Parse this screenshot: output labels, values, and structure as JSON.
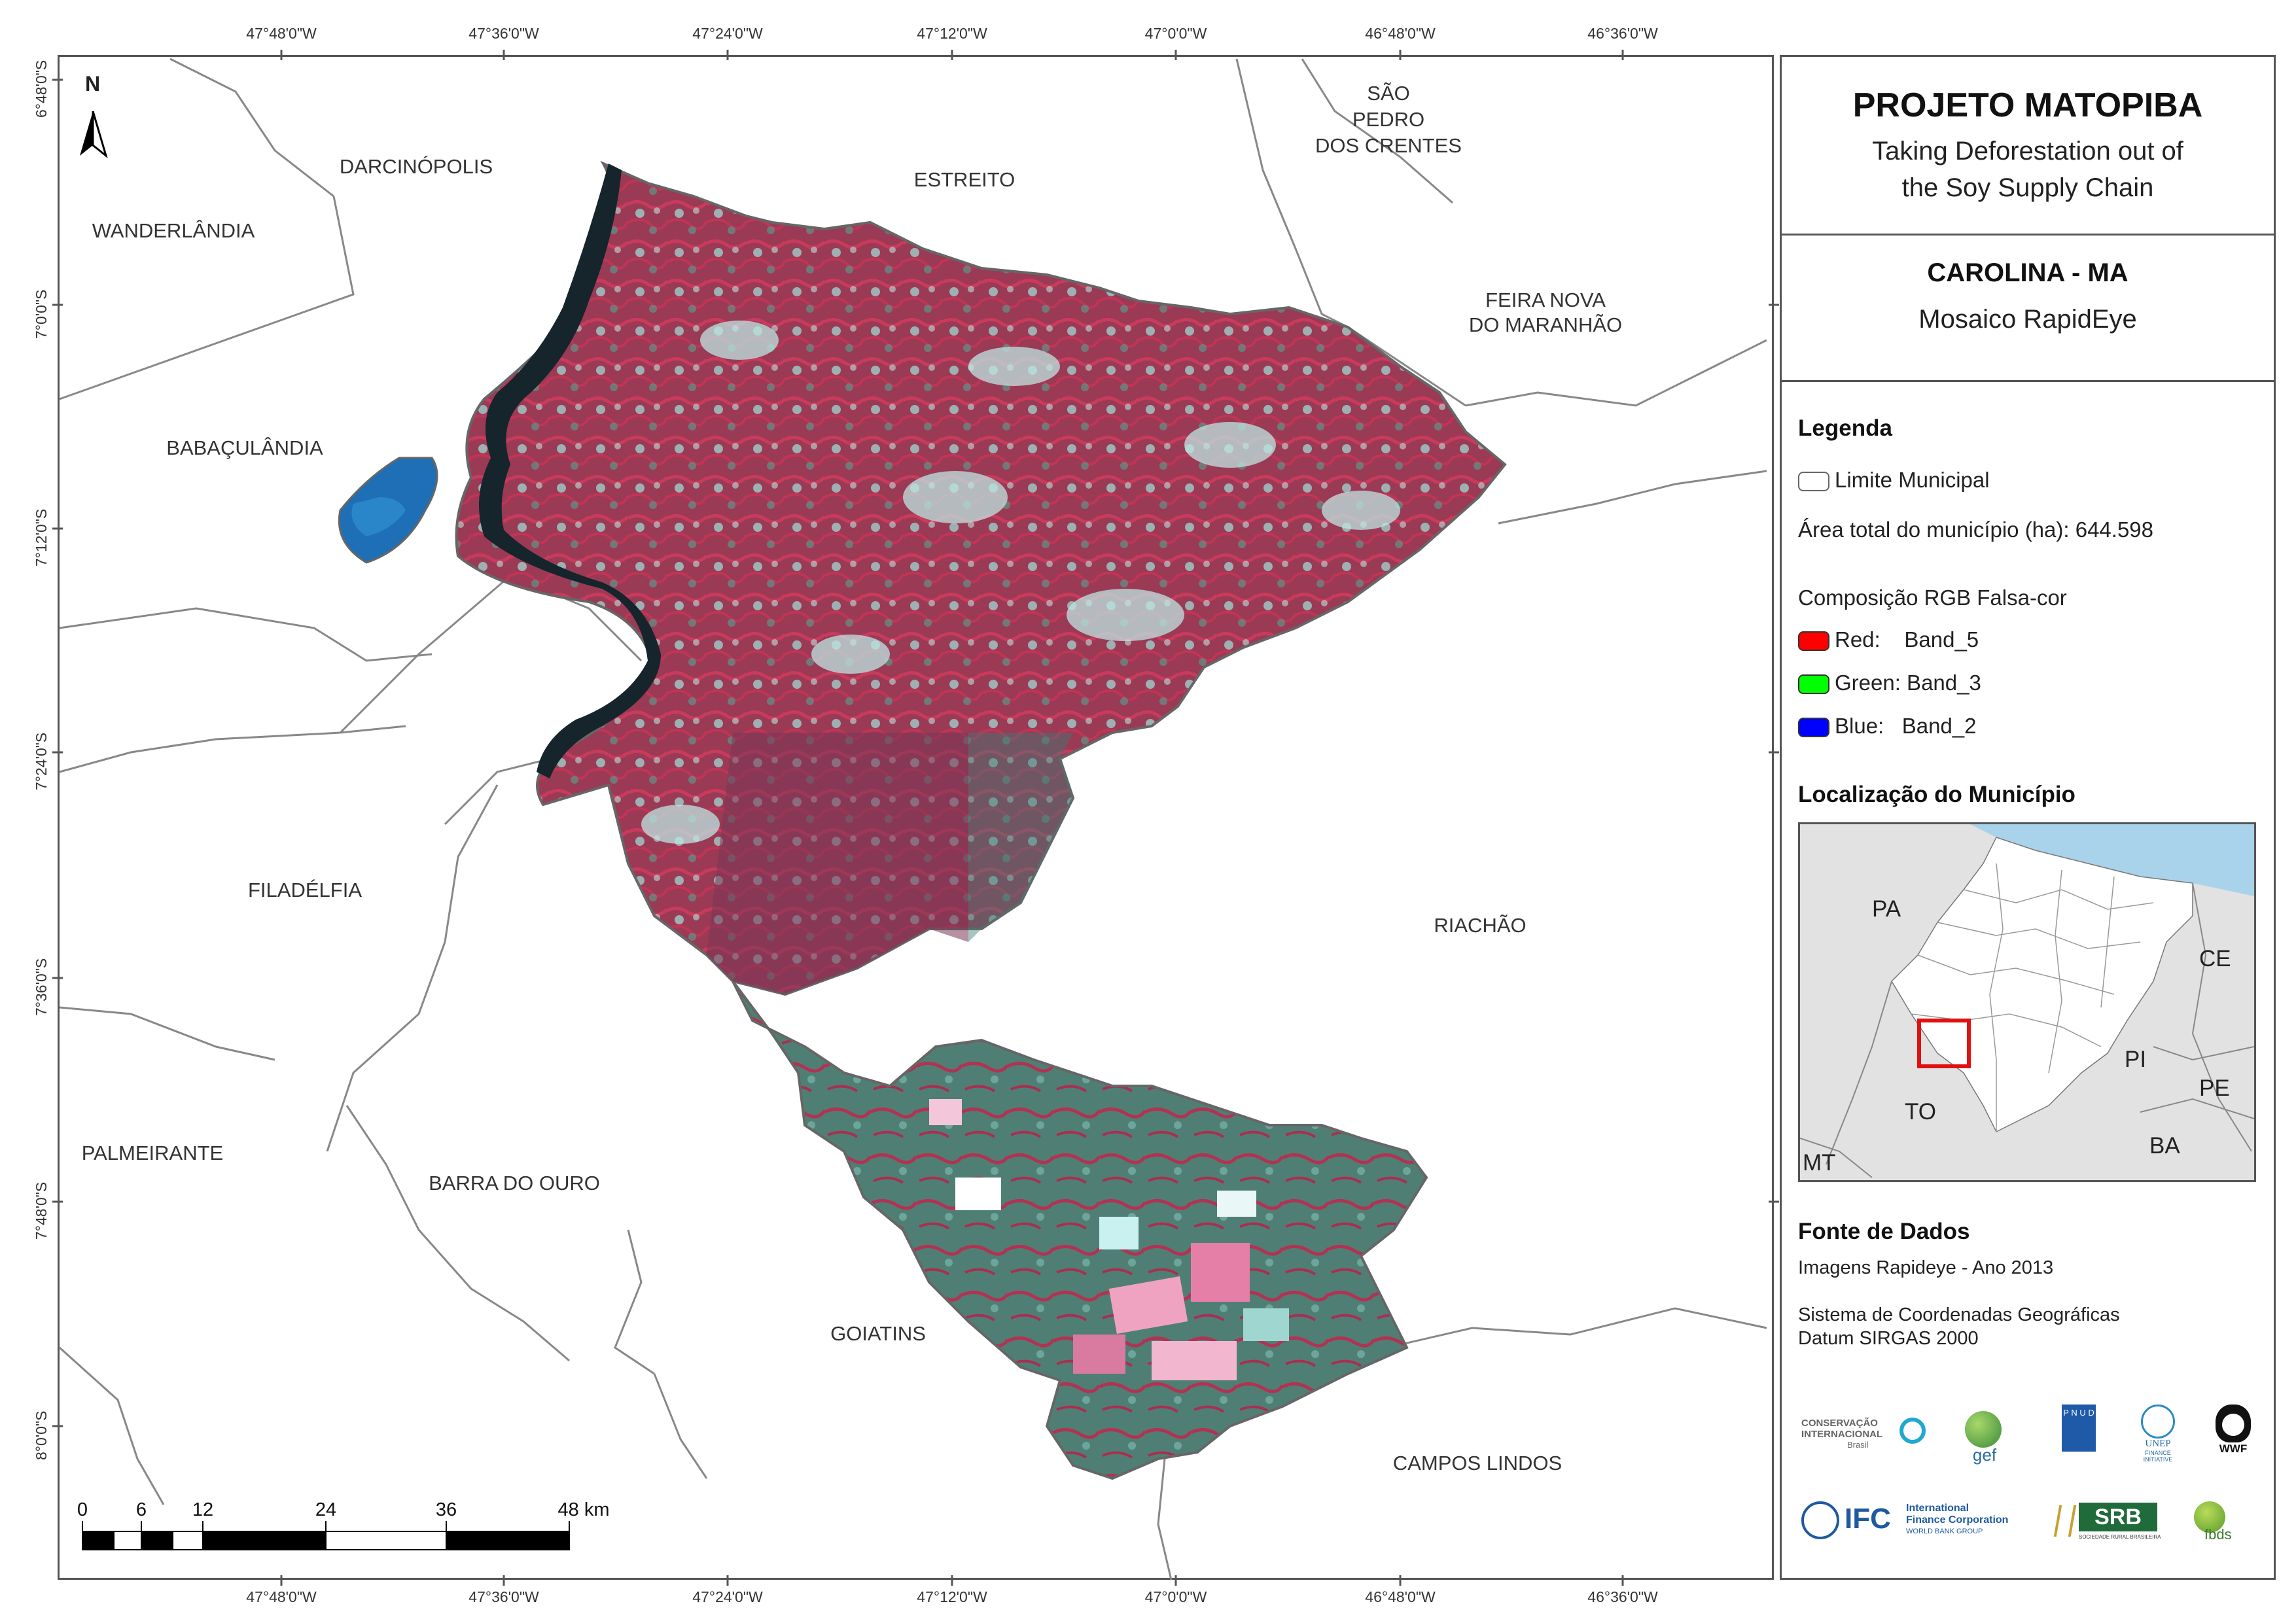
{
  "map": {
    "top_ticks": [
      "47°48'0\"W",
      "47°36'0\"W",
      "47°24'0\"W",
      "47°12'0\"W",
      "47°0'0\"W",
      "46°48'0\"W",
      "46°36'0\"W"
    ],
    "bottom_ticks": [
      "47°48'0\"W",
      "47°36'0\"W",
      "47°24'0\"W",
      "47°12'0\"W",
      "47°0'0\"W",
      "46°48'0\"W",
      "46°36'0\"W"
    ],
    "left_ticks": [
      "6°48'0\"S",
      "7°0'0\"S",
      "7°12'0\"S",
      "7°24'0\"S",
      "7°36'0\"S",
      "7°48'0\"S",
      "8°0'0\"S"
    ],
    "north_label": "N",
    "municipalities": {
      "darcinopolis": "DARCINÓPOLIS",
      "estreito": "ESTREITO",
      "sao_pedro_1": "SÃO",
      "sao_pedro_2": "PEDRO",
      "sao_pedro_3": "DOS CRENTES",
      "wanderlandia": "WANDERLÂNDIA",
      "feira_nova_1": "FEIRA NOVA",
      "feira_nova_2": "DO MARANHÃO",
      "babaculandia": "BABAÇULÂNDIA",
      "filadelfia": "FILADÉLFIA",
      "riachao": "RIACHÃO",
      "palmeirante": "PALMEIRANTE",
      "barra_do_ouro": "BARRA DO OURO",
      "goiatins": "GOIATINS",
      "campos_lindos": "CAMPOS LINDOS"
    },
    "scale_bar": {
      "labels": [
        "0",
        "6",
        "12",
        "24",
        "36",
        "48 km"
      ]
    }
  },
  "panel": {
    "title": "PROJETO MATOPIBA",
    "subtitle_1": "Taking Deforestation out of",
    "subtitle_2": "the Soy Supply Chain",
    "place": "CAROLINA - MA",
    "mosaic": "Mosaico RapidEye",
    "legend_heading": "Legenda",
    "limite": "Limite Municipal",
    "area": "Área total do município (ha): 644.598",
    "composicao": "Composição RGB Falsa-cor",
    "bands": [
      {
        "label": "Red:    Band_5",
        "color": "#ff0000"
      },
      {
        "label": "Green: Band_3",
        "color": "#00ff00"
      },
      {
        "label": "Blue:   Band_2",
        "color": "#0000ff"
      }
    ],
    "location_heading": "Localização do Município",
    "location_labels": {
      "pa": "PA",
      "ce": "CE",
      "pi": "PI",
      "pe": "PE",
      "to": "TO",
      "ba": "BA",
      "mt": "MT"
    },
    "source_heading": "Fonte de Dados",
    "source_1": "Imagens Rapideye - Ano 2013",
    "source_2": "Sistema de Coordenadas Geográficas",
    "source_3": "Datum SIRGAS 2000",
    "logos": {
      "ci_1": "CONSERVAÇÃO",
      "ci_2": "INTERNACIONAL",
      "ci_3": "Brasil",
      "gef": "gef",
      "unep_1": "UNEP",
      "unep_2": "FINANCE",
      "unep_3": "INITIATIVE",
      "wwf": "WWF",
      "ifc": "IFC",
      "ifc_1": "International",
      "ifc_2": "Finance Corporation",
      "ifc_3": "WORLD BANK GROUP",
      "srb": "SRB",
      "srb_sub": "SOCIEDADE RURAL BRASILEIRA",
      "fbds": "fbds",
      "undp": "P N U D"
    }
  },
  "colors": {
    "water": "#1f7fc8",
    "veg_red": "#b2324f",
    "veg_cyan": "#8fd0cc",
    "veg_green": "#4f8a7d",
    "ocean": "#a9d3ea",
    "land": "#e5e5e5",
    "accent_red": "#e11010"
  }
}
